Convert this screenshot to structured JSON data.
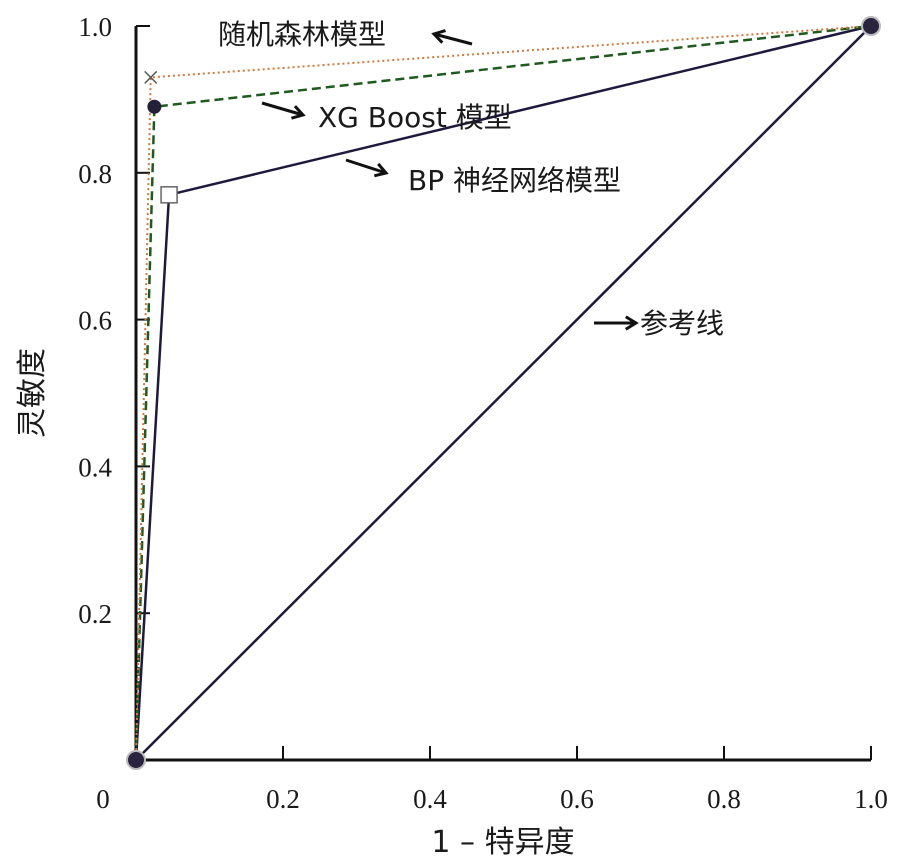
{
  "chart_data": {
    "type": "line",
    "xlabel": "1 – 特异度",
    "ylabel": "灵敏度",
    "xlim": [
      0,
      1.0
    ],
    "ylim": [
      0,
      1.0
    ],
    "x_ticks": [
      "0",
      "0.2",
      "0.4",
      "0.6",
      "0.8",
      "1.0"
    ],
    "y_ticks": [
      "0.2",
      "0.4",
      "0.6",
      "0.8",
      "1.0"
    ],
    "series": [
      {
        "name": "随机森林模型",
        "x": [
          0,
          0.02,
          1.0
        ],
        "y": [
          0,
          0.93,
          1.0
        ],
        "color": "#d2783c",
        "style": "dotted",
        "marker": "x"
      },
      {
        "name": "XG Boost 模型",
        "x": [
          0,
          0.025,
          1.0
        ],
        "y": [
          0,
          0.89,
          1.0
        ],
        "color": "#1f5a1f",
        "style": "dashed",
        "marker": "circle"
      },
      {
        "name": "BP 神经网络模型",
        "x": [
          0,
          0.045,
          1.0
        ],
        "y": [
          0,
          0.77,
          1.0
        ],
        "color": "#1e1a3c",
        "style": "solid",
        "marker": "square"
      },
      {
        "name": "参考线",
        "x": [
          0,
          1.0
        ],
        "y": [
          0,
          1.0
        ],
        "color": "#1e1a3c",
        "style": "solid",
        "marker": "none"
      }
    ],
    "annotations": [
      {
        "text": "随机森林模型",
        "series": 0
      },
      {
        "text": "XG Boost 模型",
        "series": 1
      },
      {
        "text": "BP 神经网络模型",
        "series": 2
      },
      {
        "text": "参考线",
        "series": 3
      }
    ],
    "grid": false
  }
}
